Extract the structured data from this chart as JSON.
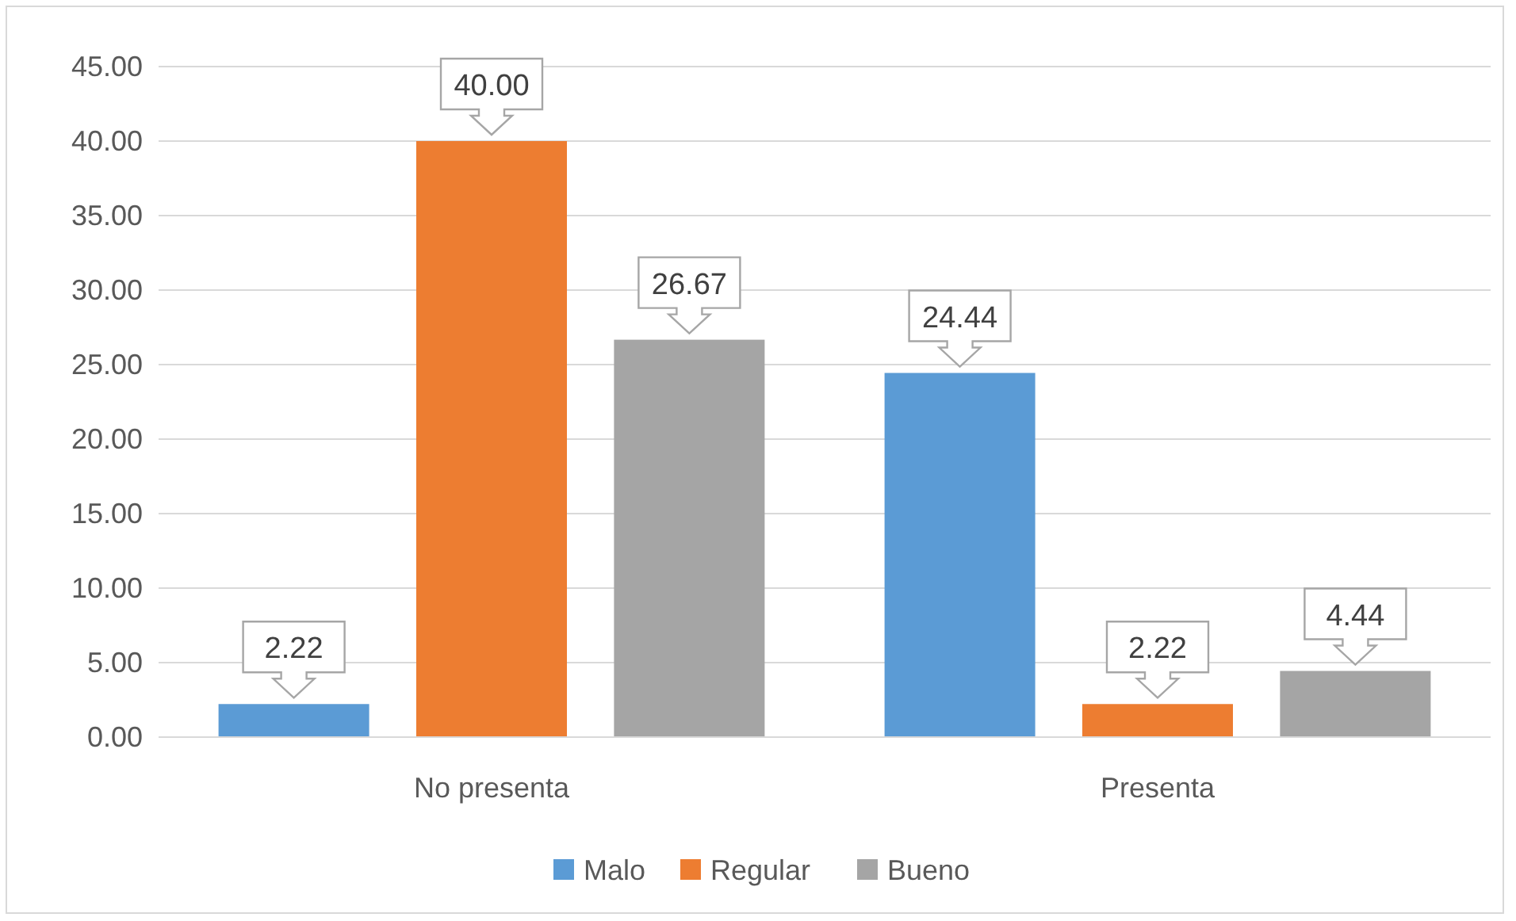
{
  "chart_data": {
    "type": "bar",
    "categories": [
      "No presenta",
      "Presenta"
    ],
    "series": [
      {
        "name": "Malo",
        "color": "#5b9bd5",
        "values": [
          2.22,
          24.44
        ],
        "value_labels": [
          "2.22",
          "24.44"
        ]
      },
      {
        "name": "Regular",
        "color": "#ed7d31",
        "values": [
          40.0,
          2.22
        ],
        "value_labels": [
          "40.00",
          "2.22"
        ]
      },
      {
        "name": "Bueno",
        "color": "#a5a5a5",
        "values": [
          26.67,
          4.44
        ],
        "value_labels": [
          "26.67",
          "4.44"
        ]
      }
    ],
    "ylim": [
      0,
      45
    ],
    "yticks": [
      {
        "value": 0,
        "label": "0.00"
      },
      {
        "value": 5,
        "label": "5.00"
      },
      {
        "value": 10,
        "label": "10.00"
      },
      {
        "value": 15,
        "label": "15.00"
      },
      {
        "value": 20,
        "label": "20.00"
      },
      {
        "value": 25,
        "label": "25.00"
      },
      {
        "value": 30,
        "label": "30.00"
      },
      {
        "value": 35,
        "label": "35.00"
      },
      {
        "value": 40,
        "label": "40.00"
      },
      {
        "value": 45,
        "label": "45.00"
      }
    ],
    "grid": "y",
    "legend": "bottom"
  }
}
